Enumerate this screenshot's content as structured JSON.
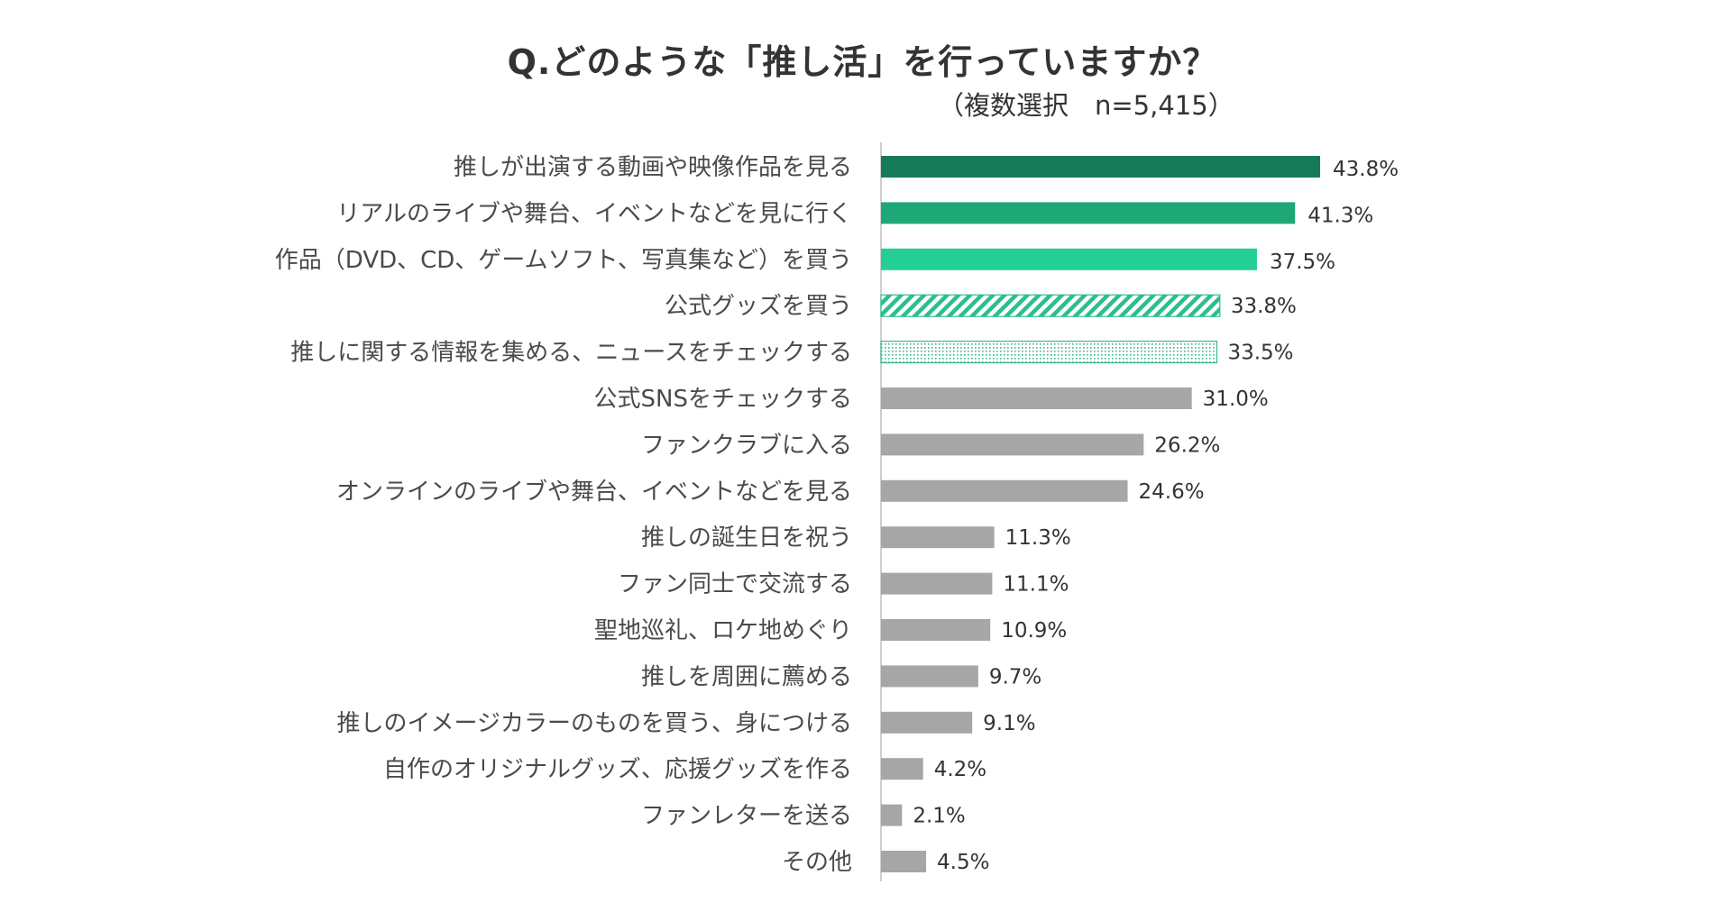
{
  "title": "Q.どのような「推し活」を行っていますか？",
  "subtitle": "（複数選択　n=5,415）",
  "colors": {
    "dark_green": "#157a57",
    "mid_green": "#1fa877",
    "light_green": "#24cf95",
    "hatch_green": "#2bbf8e",
    "dot_green": "#38b98c",
    "gray": "#a6a6a6",
    "axis": "#bfbfbf",
    "gray_label": "#333333"
  },
  "chart_data": {
    "type": "bar",
    "orientation": "horizontal",
    "title": "Q.どのような「推し活」を行っていますか？",
    "subtitle": "（複数選択　n=5,415）",
    "unit": "%",
    "categories": [
      "推しが出演する動画や映像作品を見る",
      "リアルのライブや舞台、イベントなどを見に行く",
      "作品（DVD、CD、ゲームソフト、写真集など）を買う",
      "公式グッズを買う",
      "推しに関する情報を集める、ニュースをチェックする",
      "公式SNSをチェックする",
      "ファンクラブに入る",
      "オンラインのライブや舞台、イベントなどを見る",
      "推しの誕生日を祝う",
      "ファン同士で交流する",
      "聖地巡礼、ロケ地めぐり",
      "推しを周囲に薦める",
      "推しのイメージカラーのものを買う、身につける",
      "自作のオリジナルグッズ、応援グッズを作る",
      "ファンレターを送る",
      "その他"
    ],
    "values": [
      43.8,
      41.3,
      37.5,
      33.8,
      33.5,
      31.0,
      26.2,
      24.6,
      11.3,
      11.1,
      10.9,
      9.7,
      9.1,
      4.2,
      2.1,
      4.5
    ],
    "labels": [
      "43.8%",
      "41.3%",
      "37.5%",
      "33.8%",
      "33.5%",
      "31.0%",
      "26.2%",
      "24.6%",
      "11.3%",
      "11.1%",
      "10.9%",
      "9.7%",
      "9.1%",
      "4.2%",
      "2.1%",
      "4.5%"
    ],
    "styles": [
      "dark",
      "mid",
      "light",
      "hatch",
      "dots",
      "gray",
      "gray",
      "gray",
      "gray",
      "gray",
      "gray",
      "gray",
      "gray",
      "gray",
      "gray",
      "gray"
    ],
    "xlim": [
      0,
      100
    ]
  }
}
